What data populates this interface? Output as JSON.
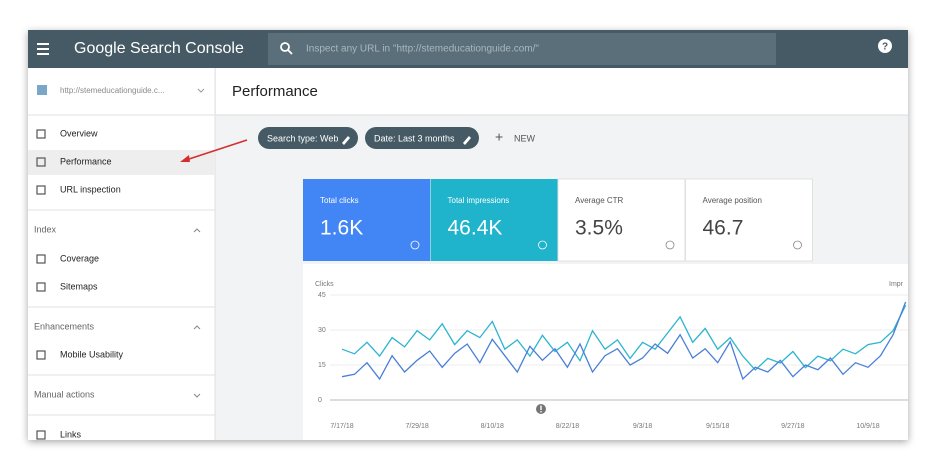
{
  "header": {
    "app_name": "Google Search Console",
    "search_placeholder": "Inspect any URL in \"http://stemeducationguide.com/\"",
    "help_label": "?"
  },
  "sidebar": {
    "property": "http://stemeducationguide.c...",
    "nav": [
      "Overview",
      "Performance",
      "URL inspection"
    ],
    "sections": [
      {
        "title": "Index",
        "items": [
          "Coverage",
          "Sitemaps"
        ]
      },
      {
        "title": "Enhancements",
        "items": [
          "Mobile Usability"
        ]
      },
      {
        "title": "Manual actions"
      }
    ],
    "footer_nav": [
      "Links"
    ]
  },
  "page": {
    "title": "Performance",
    "filters": [
      "Search type: Web",
      "Date: Last 3 months"
    ],
    "new_button": "NEW"
  },
  "metrics": [
    {
      "label": "Total clicks",
      "value": "1.6K"
    },
    {
      "label": "Total impressions",
      "value": "46.4K"
    },
    {
      "label": "Average CTR",
      "value": "3.5%"
    },
    {
      "label": "Average position",
      "value": "46.7"
    }
  ],
  "chart_data": {
    "type": "line",
    "y_label": "Clicks",
    "y2_label": "Impr",
    "x": [
      "7/17/18",
      null,
      null,
      null,
      null,
      null,
      "7/29/18",
      null,
      null,
      null,
      null,
      null,
      "8/10/18",
      null,
      null,
      null,
      null,
      null,
      "8/22/18",
      null,
      null,
      null,
      null,
      null,
      "9/3/18",
      null,
      null,
      null,
      null,
      null,
      "9/15/18",
      null,
      null,
      null,
      null,
      null,
      "9/27/18",
      null,
      null,
      null,
      null,
      null,
      "10/9/18",
      null,
      null,
      null
    ],
    "ylim": [
      0,
      45
    ],
    "yticks": [
      0,
      15,
      30,
      45
    ],
    "y2lim": [
      0,
      1000
    ],
    "grid": true,
    "series": [
      {
        "name": "Clicks",
        "color": "#4a7fd8",
        "values": [
          10,
          11,
          16,
          9,
          19,
          12,
          17,
          21,
          14,
          20,
          24,
          16,
          26,
          19,
          12,
          23,
          17,
          22,
          14,
          24,
          12,
          19,
          22,
          15,
          18,
          24,
          20,
          28,
          18,
          22,
          16,
          25,
          9,
          14,
          12,
          17,
          10,
          15,
          13,
          18,
          11,
          16,
          14,
          19,
          28,
          42
        ]
      },
      {
        "name": "Impressions",
        "color": "#2bb5cf",
        "axis": "y2",
        "values": [
          484,
          440,
          550,
          418,
          594,
          506,
          660,
          572,
          726,
          528,
          660,
          594,
          748,
          484,
          572,
          418,
          616,
          462,
          550,
          374,
          660,
          484,
          572,
          396,
          550,
          484,
          638,
          792,
          550,
          682,
          484,
          594,
          418,
          286,
          396,
          352,
          462,
          308,
          418,
          374,
          484,
          440,
          528,
          550,
          660,
          902
        ]
      }
    ]
  }
}
